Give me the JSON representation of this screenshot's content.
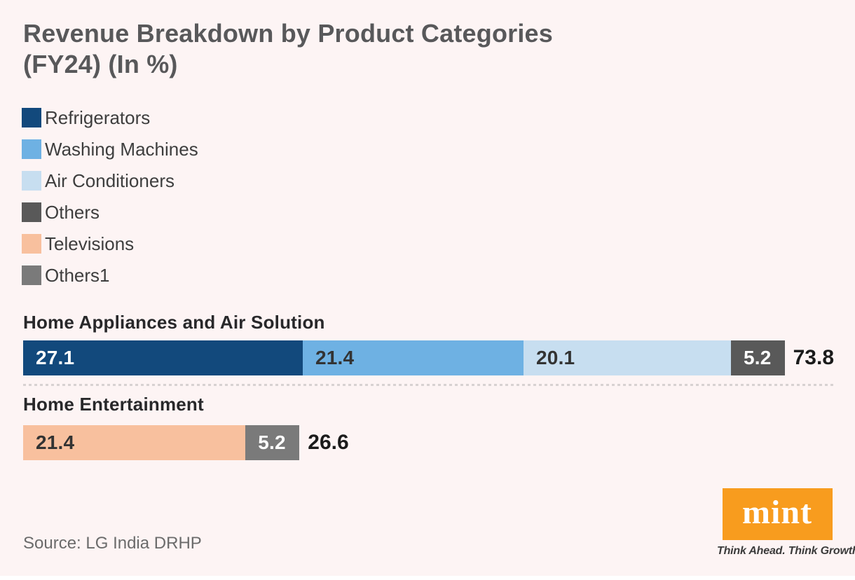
{
  "colors": {
    "background": "#fdf4f4",
    "brand_orange": "#f89c1e",
    "separator_dot": "#d8d2d2",
    "title_text": "#58585a"
  },
  "header": {
    "title_line1": "Revenue Breakdown by Product Categories",
    "title_line2": "(FY24) (In %)"
  },
  "legend": {
    "items": [
      {
        "label": "Refrigerators",
        "color": "#12497c"
      },
      {
        "label": "Washing Machines",
        "color": "#6eb1e3"
      },
      {
        "label": "Air Conditioners",
        "color": "#c7def0"
      },
      {
        "label": "Others",
        "color": "#595959"
      },
      {
        "label": "Televisions",
        "color": "#f8c09e"
      },
      {
        "label": "Others1",
        "color": "#7a7a7a"
      }
    ]
  },
  "chart_data": {
    "type": "bar",
    "orientation": "horizontal-stacked",
    "title": "Revenue Breakdown by Product Categories (FY24) (In %)",
    "unit": "%",
    "axis_max": 73.8,
    "legend_position": "top-left",
    "value_labels": "inside-segments",
    "totals_shown_at_bar_end": true,
    "categories": [
      "Home Appliances and Air Solution",
      "Home Entertainment"
    ],
    "groups": [
      {
        "label": "Home Appliances and Air Solution",
        "total": 73.8,
        "segments": [
          {
            "name": "Refrigerators",
            "value": 27.1,
            "color": "#12497c",
            "label_color": "#ffffff"
          },
          {
            "name": "Washing Machines",
            "value": 21.4,
            "color": "#6eb1e3",
            "label_color": "#333333"
          },
          {
            "name": "Air Conditioners",
            "value": 20.1,
            "color": "#c7def0",
            "label_color": "#333333"
          },
          {
            "name": "Others",
            "value": 5.2,
            "color": "#595959",
            "label_color": "#ffffff"
          }
        ]
      },
      {
        "label": "Home Entertainment",
        "total": 26.6,
        "segments": [
          {
            "name": "Televisions",
            "value": 21.4,
            "color": "#f8c09e",
            "label_color": "#333333"
          },
          {
            "name": "Others1",
            "value": 5.2,
            "color": "#7a7a7a",
            "label_color": "#ffffff"
          }
        ]
      }
    ]
  },
  "footer": {
    "source": "Source: LG India DRHP",
    "brand_name": "mint",
    "brand_tagline": "Think Ahead. Think Growth."
  }
}
